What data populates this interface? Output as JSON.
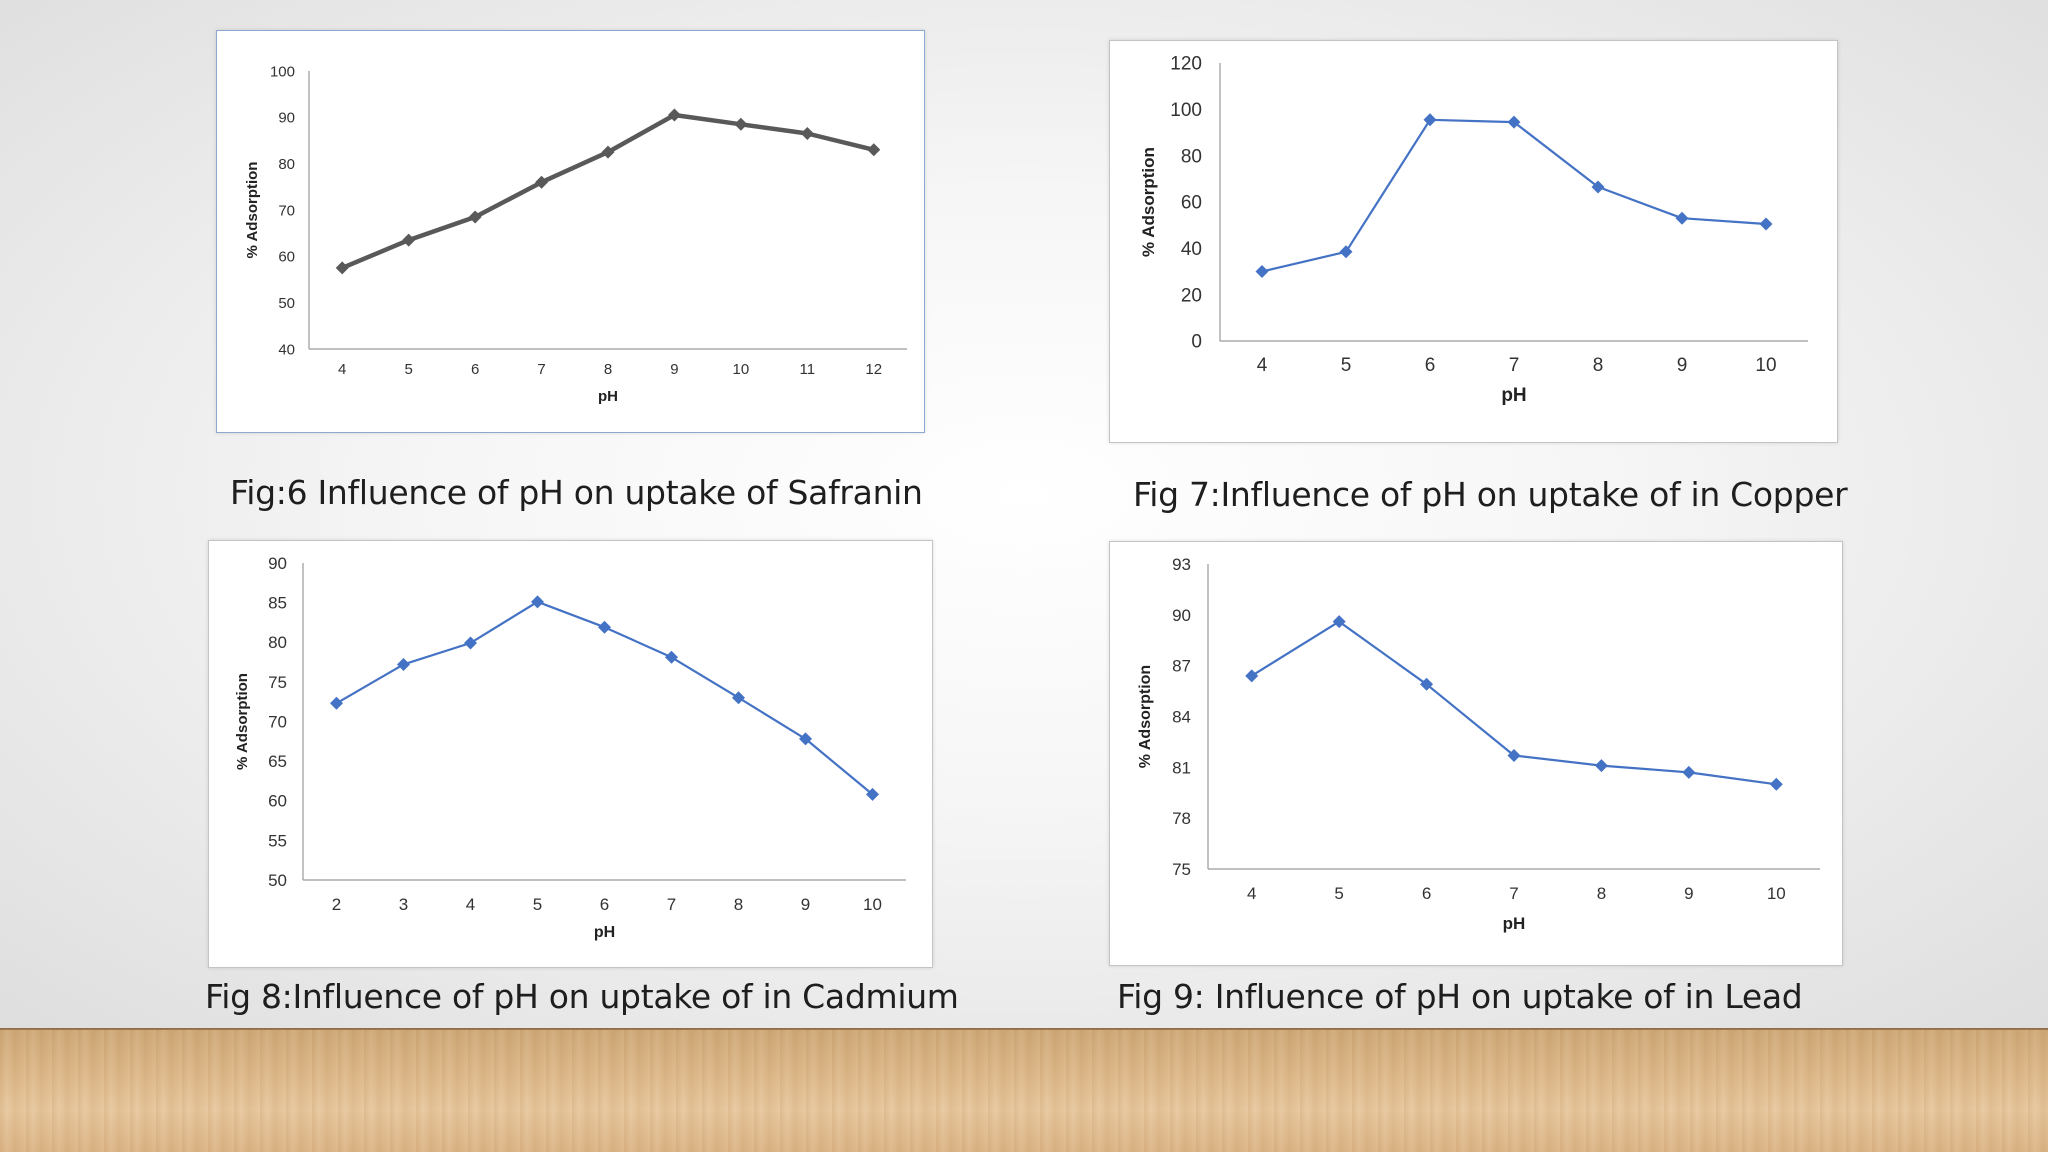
{
  "captions": {
    "fig6": "Fig:6 Influence of pH on uptake of Safranin",
    "fig7": "Fig 7:Influence of pH on uptake of in Copper",
    "fig8": "Fig 8:Influence of pH on uptake of in Cadmium",
    "fig9": "Fig 9: Influence of pH on uptake of in Lead"
  },
  "chart_data": [
    {
      "id": "fig6",
      "type": "line",
      "title": "",
      "xlabel": "pH",
      "ylabel": "% Adsorption",
      "x": [
        4,
        5,
        6,
        7,
        8,
        9,
        10,
        11,
        12
      ],
      "ylim": [
        40,
        100
      ],
      "yticks": [
        40,
        50,
        60,
        70,
        80,
        90,
        100
      ],
      "series": [
        {
          "values": [
            57.5,
            63.5,
            68.5,
            76,
            82.5,
            90.5,
            88.5,
            86.5,
            83
          ]
        }
      ],
      "color": "#595959",
      "grid": false,
      "legend": "none"
    },
    {
      "id": "fig7",
      "type": "line",
      "title": "",
      "xlabel": "pH",
      "ylabel": "% Adsorption",
      "x": [
        4,
        5,
        6,
        7,
        8,
        9,
        10
      ],
      "ylim": [
        0,
        120
      ],
      "yticks": [
        0,
        20,
        40,
        60,
        80,
        100,
        120
      ],
      "series": [
        {
          "values": [
            30,
            38.5,
            95.5,
            94.5,
            66.5,
            53,
            50.5
          ]
        }
      ],
      "color": "#4472c4",
      "grid": false,
      "legend": "none"
    },
    {
      "id": "fig8",
      "type": "line",
      "title": "",
      "xlabel": "pH",
      "ylabel": "% Adsorption",
      "x": [
        2,
        3,
        4,
        5,
        6,
        7,
        8,
        9,
        10
      ],
      "ylim": [
        50,
        90
      ],
      "yticks": [
        50,
        55,
        60,
        65,
        70,
        75,
        80,
        85,
        90
      ],
      "series": [
        {
          "values": [
            72.3,
            77.2,
            79.9,
            85.1,
            81.9,
            78.1,
            73,
            67.8,
            60.8
          ]
        }
      ],
      "color": "#4472c4",
      "grid": false,
      "legend": "none"
    },
    {
      "id": "fig9",
      "type": "line",
      "title": "",
      "xlabel": "pH",
      "ylabel": "% Adsorption",
      "x": [
        4,
        5,
        6,
        7,
        8,
        9,
        10
      ],
      "ylim": [
        75,
        93
      ],
      "yticks": [
        75,
        78,
        81,
        84,
        87,
        90,
        93
      ],
      "series": [
        {
          "values": [
            86.4,
            89.6,
            85.9,
            81.7,
            81.1,
            80.7,
            80
          ]
        }
      ],
      "color": "#4472c4",
      "grid": false,
      "legend": "none"
    }
  ]
}
